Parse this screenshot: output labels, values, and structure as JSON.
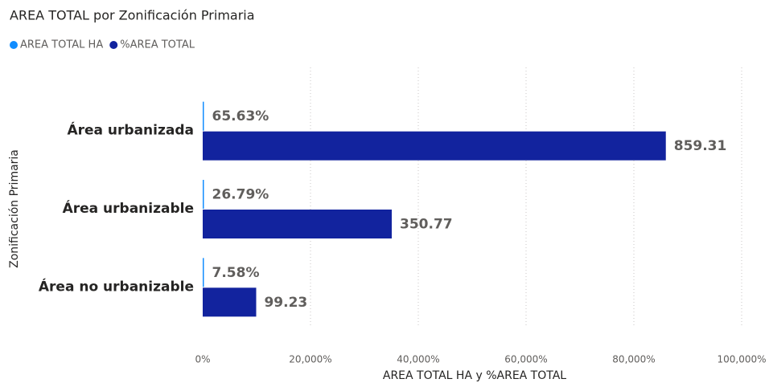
{
  "chart_data": {
    "type": "hbar",
    "title": "AREA TOTAL por Zonificación Primaria",
    "x_label": "AREA TOTAL HA y %AREA TOTAL",
    "y_label": "Zonificación Primaria",
    "categories": [
      "Área urbanizada",
      "Área urbanizable",
      "Área no urbanizable"
    ],
    "series": [
      {
        "name": "AREA TOTAL HA",
        "color": "#118dff",
        "values": [
          0.6563,
          0.2679,
          0.0758
        ],
        "value_labels": [
          "65.63%",
          "26.79%",
          "7.58%"
        ]
      },
      {
        "name": "%AREA TOTAL",
        "color": "#12239e",
        "values": [
          859.31,
          350.77,
          99.23
        ],
        "value_labels": [
          "859.31",
          "350.77",
          "99.23"
        ]
      }
    ],
    "xlim": [
      0,
      1000
    ],
    "xticks": [
      {
        "value": 0,
        "label": "0%"
      },
      {
        "value": 200,
        "label": "20,000%"
      },
      {
        "value": 400,
        "label": "40,000%"
      },
      {
        "value": 600,
        "label": "60,000%"
      },
      {
        "value": 800,
        "label": "80,000%"
      },
      {
        "value": 1000,
        "label": "100,000%"
      }
    ],
    "grid": true
  }
}
